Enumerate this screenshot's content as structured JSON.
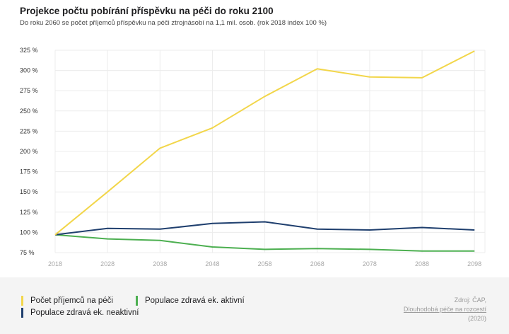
{
  "header": {
    "title": "Projekce počtu pobírání příspěvku na péči do roku 2100",
    "subtitle": "Do roku 2060 se počet příjemců příspěvku na péči ztrojnásobí na 1,1 mil. osob. (rok 2018 index 100 %)"
  },
  "chart_data": {
    "type": "line",
    "title": "Projekce počtu pobírání příspěvku na péči do roku 2100",
    "xlabel": "",
    "ylabel": "",
    "x": [
      2018,
      2028,
      2038,
      2048,
      2058,
      2068,
      2078,
      2088,
      2098
    ],
    "y_ticks": [
      "75 %",
      "100 %",
      "125 %",
      "150 %",
      "175 %",
      "200 %",
      "225 %",
      "250 %",
      "275 %",
      "300 %",
      "325 %"
    ],
    "y_tick_values": [
      75,
      100,
      125,
      150,
      175,
      200,
      225,
      250,
      275,
      300,
      325
    ],
    "x_tick_labels": [
      "2018",
      "2028",
      "2038",
      "2048",
      "2058",
      "2068",
      "2078",
      "2088",
      "2098"
    ],
    "ylim": [
      75,
      325
    ],
    "xlim": [
      2018,
      2100
    ],
    "grid": true,
    "legend_position": "bottom-left",
    "series": [
      {
        "name": "Počet příjemců na péči",
        "color": "#f2d64a",
        "values": [
          97,
          150,
          204,
          229,
          268,
          302,
          292,
          291,
          324
        ]
      },
      {
        "name": "Populace zdravá ek. aktivní",
        "color": "#4caf50",
        "values": [
          97,
          92,
          90,
          82,
          79,
          80,
          79,
          77,
          77
        ]
      },
      {
        "name": "Populace zdravá ek. neaktivní",
        "color": "#1f3f6e",
        "values": [
          97,
          105,
          104,
          111,
          113,
          104,
          103,
          106,
          103
        ]
      }
    ]
  },
  "legend": {
    "items": [
      {
        "label": "Počet příjemců na péči",
        "color": "#f2d64a"
      },
      {
        "label": "Populace zdravá ek. aktivní",
        "color": "#4caf50"
      },
      {
        "label": "Populace zdravá ek. neaktivní",
        "color": "#1f3f6e"
      }
    ]
  },
  "source": {
    "line1": "Zdroj: ČAP,",
    "line2": "Dlouhodobá péče na rozcestí",
    "line3": "(2020)"
  }
}
